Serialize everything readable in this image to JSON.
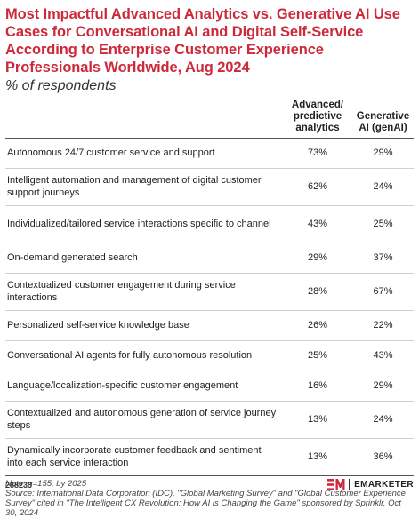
{
  "title": "Most Impactful Advanced Analytics vs. Generative AI Use Cases for Conversational AI and Digital Self-Service According to Enterprise Customer Experience Professionals Worldwide, Aug 2024",
  "subtitle": "% of respondents",
  "chart_data": {
    "type": "table",
    "columns": [
      "Advanced/ predictive analytics",
      "Generative AI (genAI)"
    ],
    "rows": [
      {
        "label": "Autonomous 24/7 customer service and support",
        "values": [
          "73%",
          "29%"
        ]
      },
      {
        "label": "Intelligent automation and management of digital customer support journeys",
        "values": [
          "62%",
          "24%"
        ]
      },
      {
        "label": "Individualized/tailored service interactions specific to channel",
        "values": [
          "43%",
          "25%"
        ]
      },
      {
        "label": "On-demand generated search",
        "values": [
          "29%",
          "37%"
        ]
      },
      {
        "label": "Contextualized customer engagement during service interactions",
        "values": [
          "28%",
          "67%"
        ]
      },
      {
        "label": "Personalized self-service knowledge base",
        "values": [
          "26%",
          "22%"
        ]
      },
      {
        "label": "Conversational AI agents for fully autonomous resolution",
        "values": [
          "25%",
          "43%"
        ]
      },
      {
        "label": "Language/localization-specific customer engagement",
        "values": [
          "16%",
          "29%"
        ]
      },
      {
        "label": "Contextualized and autonomous generation of service journey steps",
        "values": [
          "13%",
          "24%"
        ]
      },
      {
        "label": "Dynamically incorporate customer feedback and sentiment into each service interaction",
        "values": [
          "13%",
          "36%"
        ]
      }
    ]
  },
  "notes": {
    "note": "Note: n=155; by 2025",
    "source": "Source: International Data Corporation (IDC), \"Global Marketing Survey\" and \"Global Customer Experience Survey\" cited in \"The Intelligent CX Revolution: How AI is Changing the Game\" sponsored by Sprinklr, Oct 30, 2024"
  },
  "footer": {
    "id": "288233",
    "brand": "EMARKETER"
  },
  "colors": {
    "title": "#cc2a3a",
    "brand_mark": "#cc2a3a"
  }
}
